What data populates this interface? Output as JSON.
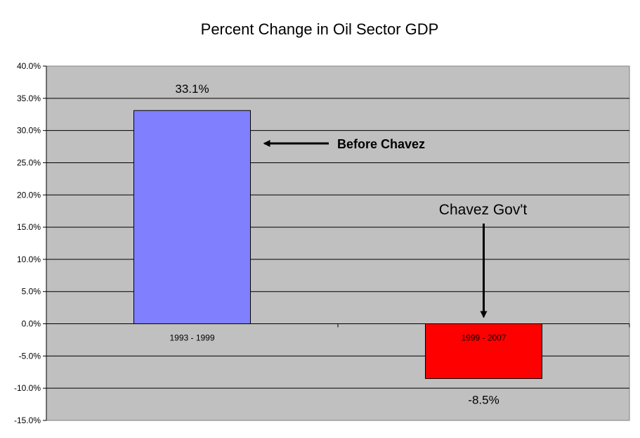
{
  "chart_data": {
    "type": "bar",
    "title": "Percent Change in Oil Sector GDP",
    "xlabel": "",
    "ylabel": "",
    "categories": [
      "1993 - 1999",
      "1999 - 2007"
    ],
    "values": [
      33.1,
      -8.5
    ],
    "data_labels": [
      "33.1%",
      "-8.5%"
    ],
    "bar_colors": [
      "#8080FF",
      "#FF0000"
    ],
    "ylim": [
      -15,
      40
    ],
    "yticks": [
      40,
      35,
      30,
      25,
      20,
      15,
      10,
      5,
      0,
      -5,
      -10,
      -15
    ],
    "ytick_labels": [
      "40.0%",
      "35.0%",
      "30.0%",
      "25.0%",
      "20.0%",
      "15.0%",
      "10.0%",
      "5.0%",
      "0.0%",
      "-5.0%",
      "-10.0%",
      "-15.0%"
    ],
    "grid": true,
    "plot_background": "#C0C0C0",
    "annotations": [
      {
        "text": "Before Chavez",
        "target": "1993 - 1999",
        "arrow": "left"
      },
      {
        "text": "Chavez Gov't",
        "target": "1999 - 2007",
        "arrow": "down"
      }
    ]
  }
}
